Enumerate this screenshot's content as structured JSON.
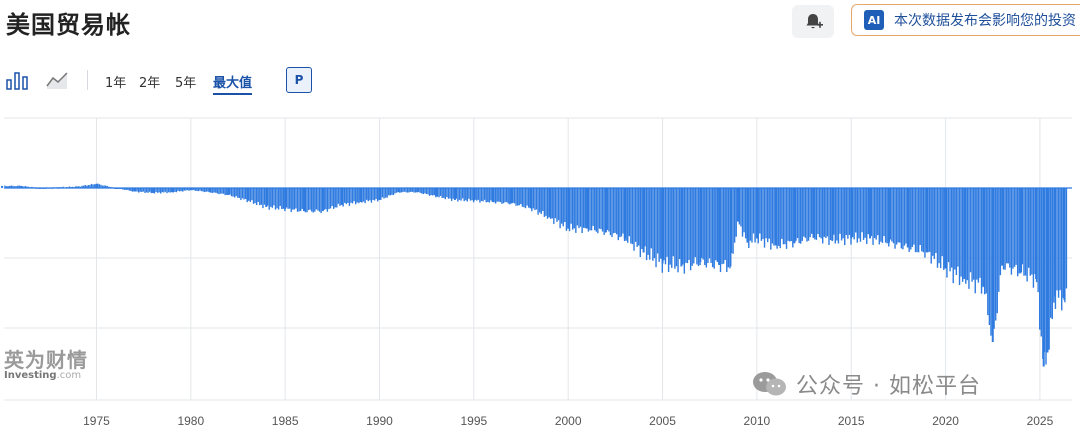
{
  "header": {
    "title": "美国贸易帐",
    "ai_badge": "AI",
    "ai_banner_text": "本次数据发布会影响您的投资"
  },
  "toolbar": {
    "icons": [
      "bar-chart-icon",
      "area-chart-icon"
    ],
    "ranges": [
      "1年",
      "2年",
      "5年",
      "最大值"
    ],
    "active_range": "最大值",
    "p_label": "P"
  },
  "colors": {
    "bar": "#2f7be0",
    "grid": "#e3e6ea",
    "active": "#1a52a8",
    "text": "#222222"
  },
  "watermarks": {
    "brand_cn": "英为财情",
    "brand_en": "Investing",
    "brand_domain": ".com",
    "wechat": "公众号 · 如松平台"
  },
  "chart_data": {
    "type": "bar",
    "title": "",
    "xlabel": "",
    "ylabel": "",
    "x_ticks": [
      "1975",
      "1980",
      "1985",
      "1990",
      "1995",
      "2000",
      "2005",
      "2010",
      "2015",
      "2020",
      "2025"
    ],
    "xlim": [
      1970.1,
      2026.7
    ],
    "y_axis_labels_visible": false,
    "grid": "vertical and horizontal",
    "note": "values read off relative to the zero line; no y-axis tick labels are shown, so units are relative (zero line to 1st horizontal gridline = 1.0)",
    "x": [
      1970,
      1971,
      1972,
      1973,
      1974,
      1975,
      1976,
      1977,
      1978,
      1979,
      1980,
      1981,
      1982,
      1983,
      1984,
      1985,
      1986,
      1987,
      1988,
      1989,
      1990,
      1991,
      1992,
      1993,
      1994,
      1995,
      1996,
      1997,
      1998,
      1999,
      2000,
      2001,
      2002,
      2003,
      2004,
      2005,
      2006,
      2007,
      2008,
      2008.6,
      2009,
      2009.5,
      2010,
      2011,
      2012,
      2013,
      2014,
      2015,
      2016,
      2017,
      2018,
      2019,
      2020,
      2021,
      2022,
      2022.5,
      2023,
      2024,
      2024.8,
      2025.2,
      2025.4,
      2025.8,
      2026.3
    ],
    "values": [
      0.03,
      0.03,
      0.0,
      0.01,
      0.02,
      0.06,
      0.0,
      -0.05,
      -0.07,
      -0.06,
      -0.03,
      -0.06,
      -0.1,
      -0.18,
      -0.27,
      -0.3,
      -0.33,
      -0.33,
      -0.24,
      -0.2,
      -0.17,
      -0.06,
      -0.06,
      -0.12,
      -0.17,
      -0.18,
      -0.2,
      -0.22,
      -0.29,
      -0.42,
      -0.58,
      -0.58,
      -0.63,
      -0.72,
      -0.92,
      -1.08,
      -1.12,
      -1.06,
      -1.1,
      -1.12,
      -0.48,
      -0.78,
      -0.72,
      -0.82,
      -0.78,
      -0.7,
      -0.75,
      -0.72,
      -0.72,
      -0.78,
      -0.85,
      -0.92,
      -1.15,
      -1.3,
      -1.4,
      -2.2,
      -1.1,
      -1.2,
      -1.3,
      -2.55,
      -2.35,
      -1.55,
      -1.6
    ]
  }
}
